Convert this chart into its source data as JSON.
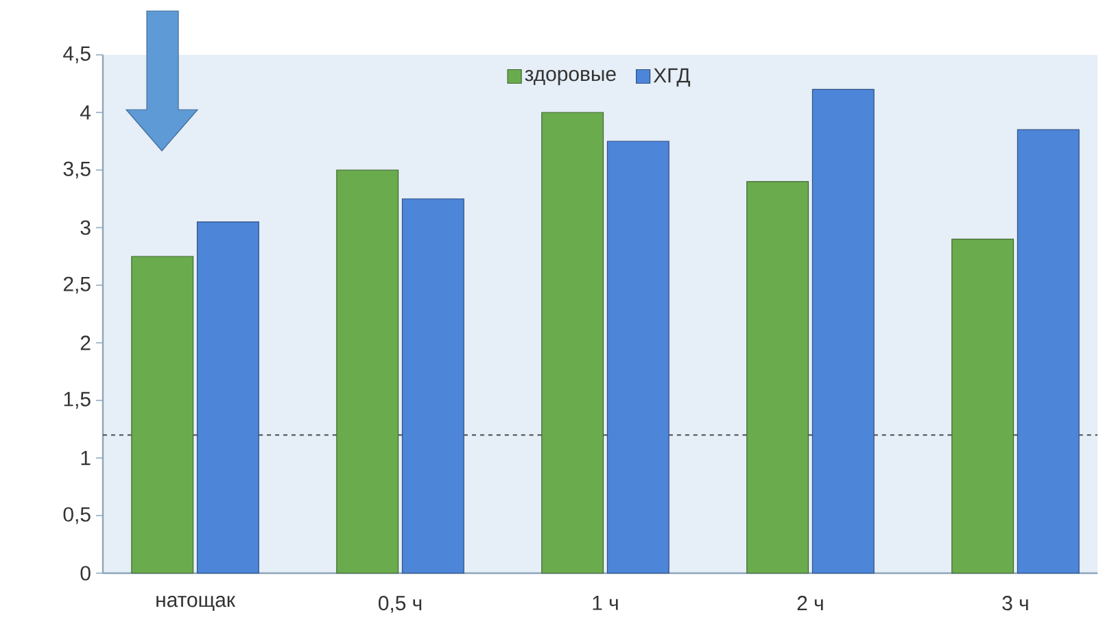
{
  "chart_data": {
    "type": "bar",
    "categories": [
      "натощак",
      "0,5 ч",
      "1 ч",
      "2 ч",
      "3 ч"
    ],
    "series": [
      {
        "name": "здоровые",
        "color": "#6aab4e",
        "values": [
          2.75,
          3.5,
          4.0,
          3.4,
          2.9
        ]
      },
      {
        "name": "ХГД",
        "color": "#4d85d8",
        "values": [
          3.05,
          3.25,
          3.75,
          4.2,
          3.85
        ]
      }
    ],
    "ylim": [
      0,
      4.5
    ],
    "yticks": [
      0,
      {
        "value": 0.5,
        "label": "0,5"
      },
      1,
      {
        "value": 1.5,
        "label": "1,5"
      },
      2,
      {
        "value": 2.5,
        "label": "2,5"
      },
      3,
      {
        "value": 3.5,
        "label": "3,5"
      },
      4,
      {
        "value": 4.5,
        "label": "4,5"
      }
    ],
    "ref_lines": [
      {
        "axis": "y",
        "value": 1.2,
        "color": "#4a4a4a",
        "line_style": "dashed"
      }
    ],
    "legend": "top"
  }
}
